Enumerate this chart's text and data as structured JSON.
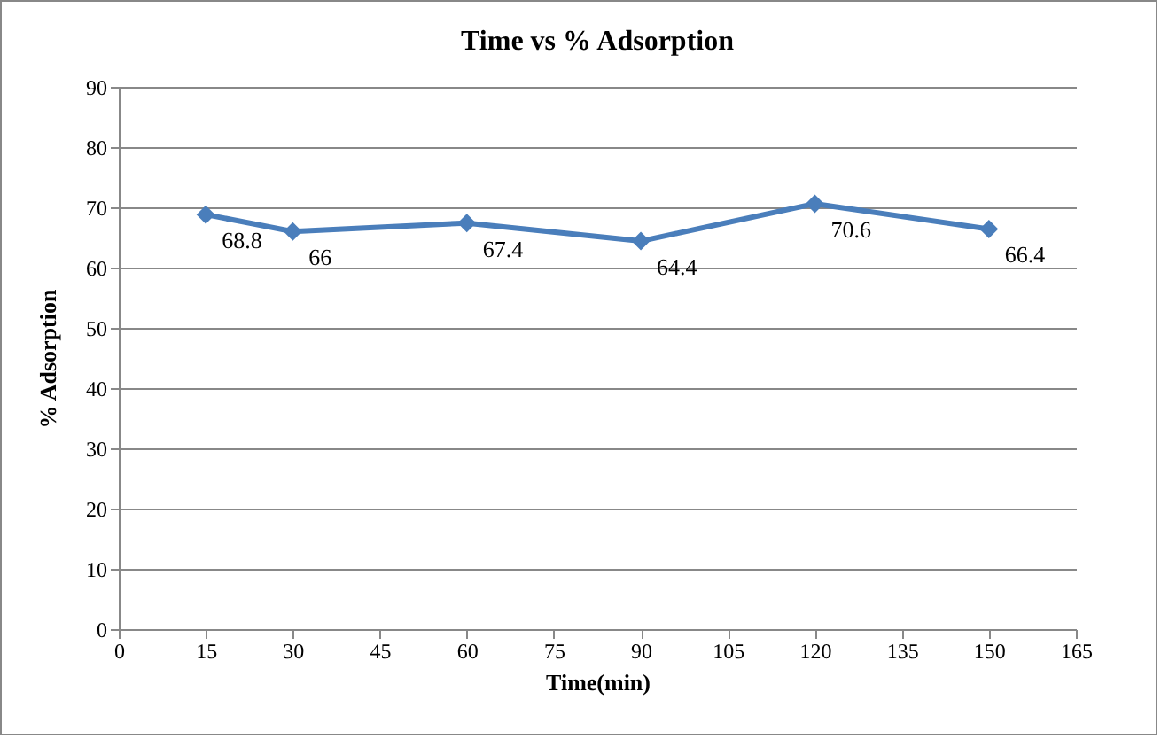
{
  "chart_data": {
    "type": "line",
    "title": "Time vs % Adsorption",
    "xlabel": "Time(min)",
    "ylabel": "% Adsorption",
    "x": [
      15,
      30,
      60,
      90,
      120,
      150
    ],
    "series": [
      {
        "color": "#4a7ebb",
        "values": [
          68.8,
          66,
          67.4,
          64.4,
          70.6,
          66.4
        ]
      }
    ],
    "xlim": [
      0,
      165
    ],
    "xticks": [
      0,
      15,
      30,
      45,
      60,
      75,
      90,
      105,
      120,
      135,
      150,
      165
    ],
    "ylim": [
      0,
      90
    ],
    "yticks": [
      0,
      10,
      20,
      30,
      40,
      50,
      60,
      70,
      80,
      90
    ],
    "grid": "y",
    "marker": "diamond",
    "line_style": "solid",
    "data_labels": true
  }
}
